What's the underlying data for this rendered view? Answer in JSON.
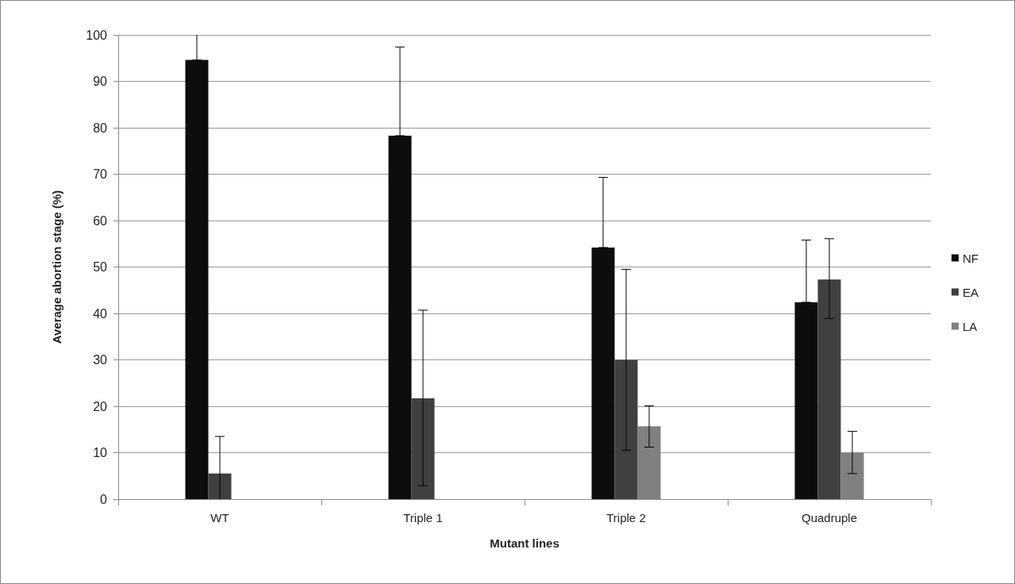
{
  "chart_data": {
    "type": "bar",
    "xlabel": "Mutant lines",
    "ylabel": "Average abortion stage (%)",
    "categories": [
      "WT",
      "Triple 1",
      "Triple 2",
      "Quadruple"
    ],
    "series": [
      {
        "name": "NF",
        "color": "#0d0d0d",
        "values": [
          94.6,
          78.3,
          54.2,
          42.4
        ],
        "errors": [
          [
            94.6,
            100
          ],
          [
            78.3,
            97.4
          ],
          [
            54.2,
            69.3
          ],
          [
            42.4,
            55.8
          ]
        ]
      },
      {
        "name": "EA",
        "color": "#404040",
        "values": [
          5.5,
          21.7,
          30.0,
          47.3
        ],
        "errors": [
          [
            0,
            13.5
          ],
          [
            2.9,
            40.7
          ],
          [
            10.5,
            49.5
          ],
          [
            38.9,
            56.1
          ]
        ]
      },
      {
        "name": "LA",
        "color": "#808080",
        "values": [
          null,
          null,
          15.7,
          10.0
        ],
        "errors": [
          null,
          null,
          [
            11.2,
            20.1
          ],
          [
            5.5,
            14.6
          ]
        ]
      }
    ],
    "ylim": [
      0,
      100
    ],
    "yticks": [
      0,
      10,
      20,
      30,
      40,
      50,
      60,
      70,
      80,
      90,
      100
    ],
    "grid": "y",
    "legend": "right"
  }
}
